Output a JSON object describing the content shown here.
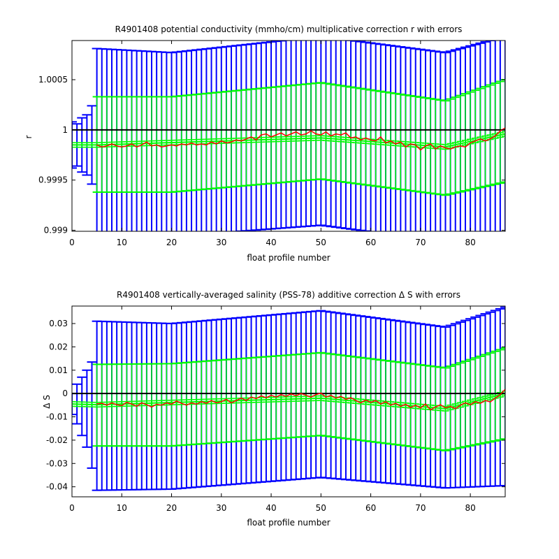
{
  "chart_data": [
    {
      "type": "line",
      "title": "R4901408 potential conductivity (mmho/cm) multiplicative correction r with errors",
      "xlabel": "float profile number",
      "ylabel": "r",
      "xlim": [
        0,
        87
      ],
      "ylim": [
        0.99899,
        1.00089
      ],
      "xticks": [
        0,
        10,
        20,
        30,
        40,
        50,
        60,
        70,
        80
      ],
      "yticks": [
        0.999,
        0.9995,
        1,
        1.0005
      ],
      "ytick_labels": [
        "0.999",
        "0.9995",
        "1",
        "1.0005"
      ],
      "reference_line": 1,
      "colors": {
        "outer_error": "#0000ff",
        "inner_error": "#00ff00",
        "fit": "#00ff00",
        "measured": "#ff0000",
        "reference": "#000000"
      },
      "series": [
        {
          "name": "",
          "role": "fit",
          "color": "#00ff00",
          "points": [
            [
              0,
              0.99985
            ],
            [
              5,
              0.99985
            ],
            [
              50,
              0.99992
            ],
            [
              75,
              0.99983
            ],
            [
              87,
              0.99996
            ]
          ]
        },
        {
          "name": "",
          "role": "inner-error",
          "color": "#00ff00",
          "upper": [
            [
              5,
              1.00033
            ],
            [
              20,
              1.00033
            ],
            [
              50,
              1.00047
            ],
            [
              75,
              1.00029
            ],
            [
              87,
              1.0005
            ]
          ],
          "lower": [
            [
              5,
              0.99938
            ],
            [
              20,
              0.99938
            ],
            [
              50,
              0.99951
            ],
            [
              75,
              0.99935
            ],
            [
              87,
              0.99948
            ]
          ]
        },
        {
          "name": "",
          "role": "outer-error",
          "color": "#0000ff",
          "upper": [
            [
              0,
              1.00008
            ],
            [
              1,
              1.00006
            ],
            [
              2,
              1.00012
            ],
            [
              3,
              1.00015
            ],
            [
              4,
              1.00024
            ],
            [
              5,
              1.00081
            ],
            [
              20,
              1.00077
            ],
            [
              50,
              1.00093
            ],
            [
              75,
              1.00077
            ],
            [
              87,
              1.00093
            ]
          ],
          "lower": [
            [
              0,
              0.99962
            ],
            [
              1,
              0.99964
            ],
            [
              2,
              0.99958
            ],
            [
              3,
              0.99955
            ],
            [
              4,
              0.99946
            ],
            [
              5,
              0.9989
            ],
            [
              20,
              0.99894
            ],
            [
              50,
              0.99905
            ],
            [
              75,
              0.99889
            ],
            [
              87,
              0.99895
            ]
          ]
        },
        {
          "name": "",
          "role": "measured",
          "color": "#ff0000",
          "points": [
            [
              5,
              0.99985
            ],
            [
              6,
              0.99983
            ],
            [
              7,
              0.99984
            ],
            [
              8,
              0.99986
            ],
            [
              9,
              0.99984
            ],
            [
              10,
              0.99983
            ],
            [
              11,
              0.99984
            ],
            [
              12,
              0.99986
            ],
            [
              13,
              0.99983
            ],
            [
              14,
              0.99985
            ],
            [
              15,
              0.99988
            ],
            [
              16,
              0.99984
            ],
            [
              17,
              0.99985
            ],
            [
              18,
              0.99983
            ],
            [
              19,
              0.99984
            ],
            [
              20,
              0.99985
            ],
            [
              21,
              0.99984
            ],
            [
              22,
              0.99986
            ],
            [
              23,
              0.99985
            ],
            [
              24,
              0.99987
            ],
            [
              25,
              0.99985
            ],
            [
              26,
              0.99986
            ],
            [
              27,
              0.99985
            ],
            [
              28,
              0.99988
            ],
            [
              29,
              0.99986
            ],
            [
              30,
              0.99989
            ],
            [
              31,
              0.99987
            ],
            [
              32,
              0.99988
            ],
            [
              33,
              0.9999
            ],
            [
              34,
              0.99989
            ],
            [
              35,
              0.99991
            ],
            [
              36,
              0.99993
            ],
            [
              37,
              0.9999
            ],
            [
              38,
              0.99995
            ],
            [
              39,
              0.99996
            ],
            [
              40,
              0.99993
            ],
            [
              41,
              0.99995
            ],
            [
              42,
              0.99997
            ],
            [
              43,
              0.99994
            ],
            [
              44,
              0.99996
            ],
            [
              45,
              0.99998
            ],
            [
              46,
              0.99995
            ],
            [
              47,
              0.99996
            ],
            [
              48,
              0.99999
            ],
            [
              49,
              0.99996
            ],
            [
              50,
              0.99995
            ],
            [
              51,
              0.99998
            ],
            [
              52,
              0.99994
            ],
            [
              53,
              0.99996
            ],
            [
              54,
              0.99995
            ],
            [
              55,
              0.99997
            ],
            [
              56,
              0.99992
            ],
            [
              57,
              0.99993
            ],
            [
              58,
              0.9999
            ],
            [
              59,
              0.99992
            ],
            [
              60,
              0.9999
            ],
            [
              61,
              0.99989
            ],
            [
              62,
              0.99993
            ],
            [
              63,
              0.99987
            ],
            [
              64,
              0.99989
            ],
            [
              65,
              0.99986
            ],
            [
              66,
              0.99988
            ],
            [
              67,
              0.99983
            ],
            [
              68,
              0.99986
            ],
            [
              69,
              0.99985
            ],
            [
              70,
              0.9998
            ],
            [
              71,
              0.99984
            ],
            [
              72,
              0.99986
            ],
            [
              73,
              0.99981
            ],
            [
              74,
              0.99984
            ],
            [
              75,
              0.99982
            ],
            [
              76,
              0.99981
            ],
            [
              77,
              0.99983
            ],
            [
              78,
              0.99984
            ],
            [
              79,
              0.99983
            ],
            [
              80,
              0.99987
            ],
            [
              81,
              0.99989
            ],
            [
              82,
              0.99991
            ],
            [
              83,
              0.99989
            ],
            [
              84,
              0.99991
            ],
            [
              85,
              0.99994
            ],
            [
              86,
              0.99999
            ],
            [
              87,
              1.00002
            ]
          ]
        }
      ]
    },
    {
      "type": "line",
      "title": "R4901408 vertically-averaged salinity (PSS-78) additive correction Δ S with errors",
      "xlabel": "float profile number",
      "ylabel": "Δ S",
      "xlim": [
        0,
        87
      ],
      "ylim": [
        -0.0443,
        0.0375
      ],
      "xticks": [
        0,
        10,
        20,
        30,
        40,
        50,
        60,
        70,
        80
      ],
      "yticks": [
        -0.04,
        -0.03,
        -0.02,
        -0.01,
        0,
        0.01,
        0.02,
        0.03
      ],
      "ytick_labels": [
        "-0.04",
        "-0.03",
        "-0.02",
        "-0.01",
        "0",
        "0.01",
        "0.02",
        "0.03"
      ],
      "reference_line": 0,
      "colors": {
        "outer_error": "#0000ff",
        "inner_error": "#00ff00",
        "fit": "#00ff00",
        "measured": "#ff0000",
        "reference": "#000000"
      },
      "series": [
        {
          "name": "",
          "role": "fit",
          "color": "#00ff00",
          "points": [
            [
              0,
              -0.0045
            ],
            [
              5,
              -0.0048
            ],
            [
              50,
              -0.002
            ],
            [
              75,
              -0.0065
            ],
            [
              87,
              0.0
            ]
          ]
        },
        {
          "name": "",
          "role": "inner-error",
          "color": "#00ff00",
          "upper": [
            [
              5,
              0.0125
            ],
            [
              20,
              0.0128
            ],
            [
              50,
              0.0175
            ],
            [
              75,
              0.011
            ],
            [
              87,
              0.0195
            ]
          ],
          "lower": [
            [
              5,
              -0.0225
            ],
            [
              20,
              -0.0225
            ],
            [
              50,
              -0.018
            ],
            [
              75,
              -0.0245
            ],
            [
              87,
              -0.0195
            ]
          ]
        },
        {
          "name": "",
          "role": "outer-error",
          "color": "#0000ff",
          "upper": [
            [
              0,
              0.0
            ],
            [
              1,
              0.004
            ],
            [
              2,
              0.007
            ],
            [
              3,
              0.01
            ],
            [
              4,
              0.0135
            ],
            [
              5,
              0.031
            ],
            [
              20,
              0.03
            ],
            [
              50,
              0.0355
            ],
            [
              75,
              0.0285
            ],
            [
              87,
              0.037
            ]
          ],
          "lower": [
            [
              0,
              -0.009
            ],
            [
              1,
              -0.013
            ],
            [
              2,
              -0.018
            ],
            [
              3,
              -0.023
            ],
            [
              4,
              -0.032
            ],
            [
              5,
              -0.0415
            ],
            [
              20,
              -0.041
            ],
            [
              50,
              -0.036
            ],
            [
              75,
              -0.0405
            ],
            [
              87,
              -0.0395
            ]
          ]
        },
        {
          "name": "",
          "role": "measured",
          "color": "#ff0000",
          "points": [
            [
              5,
              -0.0045
            ],
            [
              6,
              -0.0042
            ],
            [
              7,
              -0.005
            ],
            [
              8,
              -0.004
            ],
            [
              9,
              -0.0048
            ],
            [
              10,
              -0.0052
            ],
            [
              11,
              -0.0038
            ],
            [
              12,
              -0.0045
            ],
            [
              13,
              -0.0055
            ],
            [
              14,
              -0.004
            ],
            [
              15,
              -0.0048
            ],
            [
              16,
              -0.0058
            ],
            [
              17,
              -0.0046
            ],
            [
              18,
              -0.005
            ],
            [
              19,
              -0.004
            ],
            [
              20,
              -0.0046
            ],
            [
              21,
              -0.0032
            ],
            [
              22,
              -0.0042
            ],
            [
              23,
              -0.005
            ],
            [
              24,
              -0.004
            ],
            [
              25,
              -0.0046
            ],
            [
              26,
              -0.0035
            ],
            [
              27,
              -0.0042
            ],
            [
              28,
              -0.003
            ],
            [
              29,
              -0.004
            ],
            [
              30,
              -0.0035
            ],
            [
              31,
              -0.0025
            ],
            [
              32,
              -0.004
            ],
            [
              33,
              -0.003
            ],
            [
              34,
              -0.002
            ],
            [
              35,
              -0.003
            ],
            [
              36,
              -0.0015
            ],
            [
              37,
              -0.0022
            ],
            [
              38,
              -0.001
            ],
            [
              39,
              -0.0018
            ],
            [
              40,
              -0.0008
            ],
            [
              41,
              -0.0015
            ],
            [
              42,
              -0.0005
            ],
            [
              43,
              -0.0012
            ],
            [
              44,
              -0.0002
            ],
            [
              45,
              -0.001
            ],
            [
              46,
              0.0
            ],
            [
              47,
              -0.0008
            ],
            [
              48,
              -0.0015
            ],
            [
              49,
              -0.0005
            ],
            [
              50,
              0.0002
            ],
            [
              51,
              -0.0015
            ],
            [
              52,
              -0.0008
            ],
            [
              53,
              -0.002
            ],
            [
              54,
              -0.0012
            ],
            [
              55,
              -0.0025
            ],
            [
              56,
              -0.0018
            ],
            [
              57,
              -0.003
            ],
            [
              58,
              -0.004
            ],
            [
              59,
              -0.0028
            ],
            [
              60,
              -0.0038
            ],
            [
              61,
              -0.003
            ],
            [
              62,
              -0.0045
            ],
            [
              63,
              -0.0035
            ],
            [
              64,
              -0.005
            ],
            [
              65,
              -0.0042
            ],
            [
              66,
              -0.0055
            ],
            [
              67,
              -0.0046
            ],
            [
              68,
              -0.006
            ],
            [
              69,
              -0.005
            ],
            [
              70,
              -0.0062
            ],
            [
              71,
              -0.0045
            ],
            [
              72,
              -0.007
            ],
            [
              73,
              -0.0058
            ],
            [
              74,
              -0.0048
            ],
            [
              75,
              -0.0062
            ],
            [
              76,
              -0.0055
            ],
            [
              77,
              -0.0065
            ],
            [
              78,
              -0.005
            ],
            [
              79,
              -0.004
            ],
            [
              80,
              -0.0048
            ],
            [
              81,
              -0.0035
            ],
            [
              82,
              -0.0042
            ],
            [
              83,
              -0.003
            ],
            [
              84,
              -0.0036
            ],
            [
              85,
              -0.002
            ],
            [
              86,
              -0.0005
            ],
            [
              87,
              0.0018
            ]
          ]
        }
      ]
    }
  ]
}
